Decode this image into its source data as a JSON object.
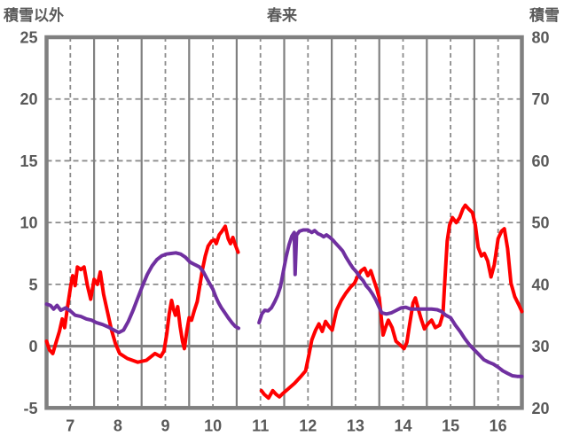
{
  "title": "春来",
  "left_axis": {
    "label": "積雪以外",
    "min": -5,
    "max": 25,
    "ticks": [
      25,
      20,
      15,
      10,
      5,
      0,
      -5
    ],
    "dashed_gridlines": [
      20,
      15,
      10,
      5
    ],
    "zero_line": 0
  },
  "right_axis": {
    "label": "積雪",
    "min": 20,
    "max": 80,
    "ticks": [
      80,
      70,
      60,
      50,
      40,
      30,
      20
    ]
  },
  "x_axis": {
    "min": 6.5,
    "max": 16.5,
    "tick_labels": [
      "7",
      "8",
      "9",
      "10",
      "11",
      "12",
      "13",
      "14",
      "15",
      "16"
    ],
    "tick_positions": [
      7,
      8,
      9,
      10,
      11,
      12,
      13,
      14,
      15,
      16
    ],
    "solid_gridlines": [
      7.5,
      8.5,
      9.5,
      10.5,
      11.5,
      12.5,
      13.5,
      14.5,
      15.5
    ]
  },
  "colors": {
    "series_other": "#ff0000",
    "series_snow": "#7030a0",
    "frame": "#808080",
    "grid": "#8c8c8c",
    "text": "#595959",
    "background": "#ffffff"
  },
  "chart_data": {
    "type": "line",
    "title": "春来",
    "xlim": [
      6.5,
      16.5
    ],
    "left_ylim": [
      -5,
      25
    ],
    "right_ylim": [
      20,
      80
    ],
    "grid": true,
    "legend": false,
    "note_gap": "both series have missing data between about day 10.55 and 11.0",
    "series": [
      {
        "name": "積雪以外",
        "axis": "left",
        "color": "#ff0000",
        "segments": [
          [
            [
              6.5,
              0.4
            ],
            [
              6.56,
              -0.3
            ],
            [
              6.63,
              -0.6
            ],
            [
              6.7,
              0.3
            ],
            [
              6.77,
              1.2
            ],
            [
              6.83,
              2.2
            ],
            [
              6.88,
              1.5
            ],
            [
              6.95,
              3.4
            ],
            [
              7.01,
              4.9
            ],
            [
              7.05,
              5.7
            ],
            [
              7.1,
              4.9
            ],
            [
              7.15,
              6.4
            ],
            [
              7.22,
              6.2
            ],
            [
              7.29,
              6.4
            ],
            [
              7.36,
              4.9
            ],
            [
              7.43,
              3.8
            ],
            [
              7.5,
              5.4
            ],
            [
              7.57,
              5.0
            ],
            [
              7.63,
              6.0
            ],
            [
              7.7,
              4.2
            ],
            [
              7.78,
              2.8
            ],
            [
              7.86,
              1.4
            ],
            [
              7.95,
              0.2
            ],
            [
              8.04,
              -0.6
            ],
            [
              8.2,
              -1.0
            ],
            [
              8.42,
              -1.3
            ],
            [
              8.6,
              -1.15
            ],
            [
              8.78,
              -0.6
            ],
            [
              8.9,
              -0.85
            ],
            [
              8.97,
              -0.4
            ],
            [
              9.03,
              1.0
            ],
            [
              9.08,
              2.6
            ],
            [
              9.13,
              3.7
            ],
            [
              9.17,
              3.0
            ],
            [
              9.21,
              2.5
            ],
            [
              9.26,
              3.2
            ],
            [
              9.31,
              1.6
            ],
            [
              9.36,
              0.4
            ],
            [
              9.4,
              -0.2
            ],
            [
              9.45,
              1.2
            ],
            [
              9.5,
              2.3
            ],
            [
              9.55,
              2.1
            ],
            [
              9.61,
              2.9
            ],
            [
              9.67,
              3.6
            ],
            [
              9.72,
              4.8
            ],
            [
              9.78,
              6.2
            ],
            [
              9.84,
              7.3
            ],
            [
              9.9,
              8.1
            ],
            [
              9.97,
              8.5
            ],
            [
              10.03,
              8.6
            ],
            [
              10.07,
              8.3
            ],
            [
              10.13,
              9.0
            ],
            [
              10.19,
              9.3
            ],
            [
              10.26,
              9.7
            ],
            [
              10.32,
              8.7
            ],
            [
              10.37,
              8.3
            ],
            [
              10.42,
              8.8
            ],
            [
              10.47,
              8.2
            ],
            [
              10.53,
              7.6
            ]
          ],
          [
            [
              11.02,
              -3.6
            ],
            [
              11.08,
              -3.9
            ],
            [
              11.17,
              -4.2
            ],
            [
              11.26,
              -3.6
            ],
            [
              11.33,
              -3.9
            ],
            [
              11.4,
              -4.1
            ],
            [
              11.48,
              -3.8
            ],
            [
              11.6,
              -3.4
            ],
            [
              11.72,
              -3.0
            ],
            [
              11.84,
              -2.5
            ],
            [
              11.95,
              -2.0
            ],
            [
              12.02,
              -0.7
            ],
            [
              12.08,
              0.5
            ],
            [
              12.16,
              1.3
            ],
            [
              12.23,
              1.8
            ],
            [
              12.3,
              1.2
            ],
            [
              12.37,
              2.0
            ],
            [
              12.44,
              1.6
            ],
            [
              12.51,
              1.3
            ],
            [
              12.6,
              2.9
            ],
            [
              12.7,
              3.7
            ],
            [
              12.8,
              4.3
            ],
            [
              12.9,
              4.8
            ],
            [
              12.98,
              5.1
            ],
            [
              13.05,
              5.7
            ],
            [
              13.12,
              6.1
            ],
            [
              13.19,
              6.3
            ],
            [
              13.26,
              5.7
            ],
            [
              13.32,
              6.1
            ],
            [
              13.39,
              5.3
            ],
            [
              13.45,
              4.6
            ],
            [
              13.5,
              3.9
            ],
            [
              13.55,
              2.0
            ],
            [
              13.58,
              0.9
            ],
            [
              13.63,
              1.5
            ],
            [
              13.69,
              2.1
            ],
            [
              13.77,
              1.5
            ],
            [
              13.85,
              0.4
            ],
            [
              13.94,
              0.1
            ],
            [
              14.02,
              -0.2
            ],
            [
              14.08,
              0.3
            ],
            [
              14.14,
              1.8
            ],
            [
              14.21,
              3.5
            ],
            [
              14.26,
              3.9
            ],
            [
              14.32,
              3.0
            ],
            [
              14.38,
              2.2
            ],
            [
              14.45,
              1.4
            ],
            [
              14.52,
              1.8
            ],
            [
              14.6,
              2.1
            ],
            [
              14.68,
              1.5
            ],
            [
              14.77,
              1.7
            ],
            [
              14.84,
              2.6
            ],
            [
              14.89,
              6.0
            ],
            [
              14.93,
              8.5
            ],
            [
              14.98,
              9.8
            ],
            [
              15.04,
              10.4
            ],
            [
              15.12,
              10.0
            ],
            [
              15.19,
              10.4
            ],
            [
              15.26,
              11.1
            ],
            [
              15.31,
              11.4
            ],
            [
              15.38,
              11.1
            ],
            [
              15.46,
              10.8
            ],
            [
              15.52,
              9.8
            ],
            [
              15.58,
              8.0
            ],
            [
              15.65,
              7.3
            ],
            [
              15.71,
              7.5
            ],
            [
              15.78,
              6.9
            ],
            [
              15.85,
              5.6
            ],
            [
              15.92,
              6.6
            ],
            [
              16.0,
              8.7
            ],
            [
              16.07,
              9.3
            ],
            [
              16.13,
              9.5
            ],
            [
              16.2,
              7.9
            ],
            [
              16.27,
              5.1
            ],
            [
              16.35,
              4.0
            ],
            [
              16.43,
              3.4
            ],
            [
              16.5,
              2.8
            ]
          ]
        ]
      },
      {
        "name": "積雪",
        "axis": "right",
        "color": "#7030a0",
        "segments": [
          [
            [
              6.5,
              36.8
            ],
            [
              6.58,
              36.6
            ],
            [
              6.65,
              36.0
            ],
            [
              6.72,
              36.6
            ],
            [
              6.8,
              35.8
            ],
            [
              6.9,
              36.2
            ],
            [
              7.0,
              35.7
            ],
            [
              7.1,
              35.0
            ],
            [
              7.22,
              34.8
            ],
            [
              7.34,
              34.4
            ],
            [
              7.45,
              34.2
            ],
            [
              7.55,
              33.8
            ],
            [
              7.68,
              33.5
            ],
            [
              7.8,
              33.1
            ],
            [
              7.92,
              32.6
            ],
            [
              8.02,
              32.2
            ],
            [
              8.12,
              32.6
            ],
            [
              8.22,
              34.0
            ],
            [
              8.32,
              35.8
            ],
            [
              8.42,
              37.8
            ],
            [
              8.52,
              39.8
            ],
            [
              8.62,
              41.6
            ],
            [
              8.72,
              43.0
            ],
            [
              8.82,
              44.0
            ],
            [
              8.92,
              44.6
            ],
            [
              9.02,
              44.9
            ],
            [
              9.12,
              45.0
            ],
            [
              9.22,
              45.1
            ],
            [
              9.32,
              44.9
            ],
            [
              9.42,
              44.4
            ],
            [
              9.52,
              43.6
            ],
            [
              9.62,
              43.2
            ],
            [
              9.72,
              42.8
            ],
            [
              9.8,
              42.0
            ],
            [
              9.87,
              41.0
            ],
            [
              9.94,
              40.0
            ],
            [
              10.0,
              39.2
            ],
            [
              10.06,
              38.0
            ],
            [
              10.12,
              37.0
            ],
            [
              10.18,
              36.2
            ],
            [
              10.25,
              35.4
            ],
            [
              10.32,
              34.6
            ],
            [
              10.4,
              33.8
            ],
            [
              10.47,
              33.2
            ],
            [
              10.54,
              32.9
            ]
          ],
          [
            [
              10.97,
              33.8
            ],
            [
              11.03,
              35.2
            ],
            [
              11.09,
              35.8
            ],
            [
              11.16,
              35.7
            ],
            [
              11.23,
              36.2
            ],
            [
              11.3,
              37.2
            ],
            [
              11.36,
              38.2
            ],
            [
              11.42,
              39.6
            ],
            [
              11.48,
              42.0
            ],
            [
              11.54,
              44.4
            ],
            [
              11.6,
              46.4
            ],
            [
              11.66,
              47.8
            ],
            [
              11.71,
              48.4
            ],
            [
              11.73,
              41.6
            ],
            [
              11.76,
              48.0
            ],
            [
              11.82,
              48.6
            ],
            [
              11.9,
              48.8
            ],
            [
              12.0,
              48.8
            ],
            [
              12.08,
              48.4
            ],
            [
              12.14,
              48.7
            ],
            [
              12.21,
              48.2
            ],
            [
              12.27,
              48.0
            ],
            [
              12.33,
              47.7
            ],
            [
              12.39,
              48.0
            ],
            [
              12.46,
              47.6
            ],
            [
              12.52,
              47.2
            ],
            [
              12.59,
              46.6
            ],
            [
              12.66,
              46.0
            ],
            [
              12.73,
              45.4
            ],
            [
              12.8,
              44.4
            ],
            [
              12.88,
              43.4
            ],
            [
              12.95,
              42.6
            ],
            [
              13.02,
              42.0
            ],
            [
              13.09,
              41.2
            ],
            [
              13.16,
              40.6
            ],
            [
              13.22,
              39.8
            ],
            [
              13.29,
              39.2
            ],
            [
              13.36,
              38.4
            ],
            [
              13.42,
              37.6
            ],
            [
              13.48,
              36.6
            ],
            [
              13.55,
              35.4
            ],
            [
              13.65,
              35.2
            ],
            [
              13.76,
              35.4
            ],
            [
              13.86,
              35.8
            ],
            [
              13.96,
              36.2
            ],
            [
              14.06,
              36.3
            ],
            [
              14.16,
              36.0
            ],
            [
              14.3,
              36.0
            ],
            [
              14.45,
              36.0
            ],
            [
              14.6,
              36.0
            ],
            [
              14.72,
              35.9
            ],
            [
              14.81,
              35.6
            ],
            [
              14.9,
              35.0
            ],
            [
              15.0,
              34.6
            ],
            [
              15.1,
              33.4
            ],
            [
              15.2,
              32.4
            ],
            [
              15.3,
              31.2
            ],
            [
              15.4,
              30.2
            ],
            [
              15.5,
              29.4
            ],
            [
              15.6,
              28.6
            ],
            [
              15.7,
              27.8
            ],
            [
              15.8,
              27.4
            ],
            [
              15.9,
              27.1
            ],
            [
              16.0,
              26.6
            ],
            [
              16.1,
              26.0
            ],
            [
              16.2,
              25.6
            ],
            [
              16.3,
              25.2
            ],
            [
              16.4,
              25.1
            ],
            [
              16.5,
              25.1
            ]
          ]
        ]
      }
    ]
  }
}
